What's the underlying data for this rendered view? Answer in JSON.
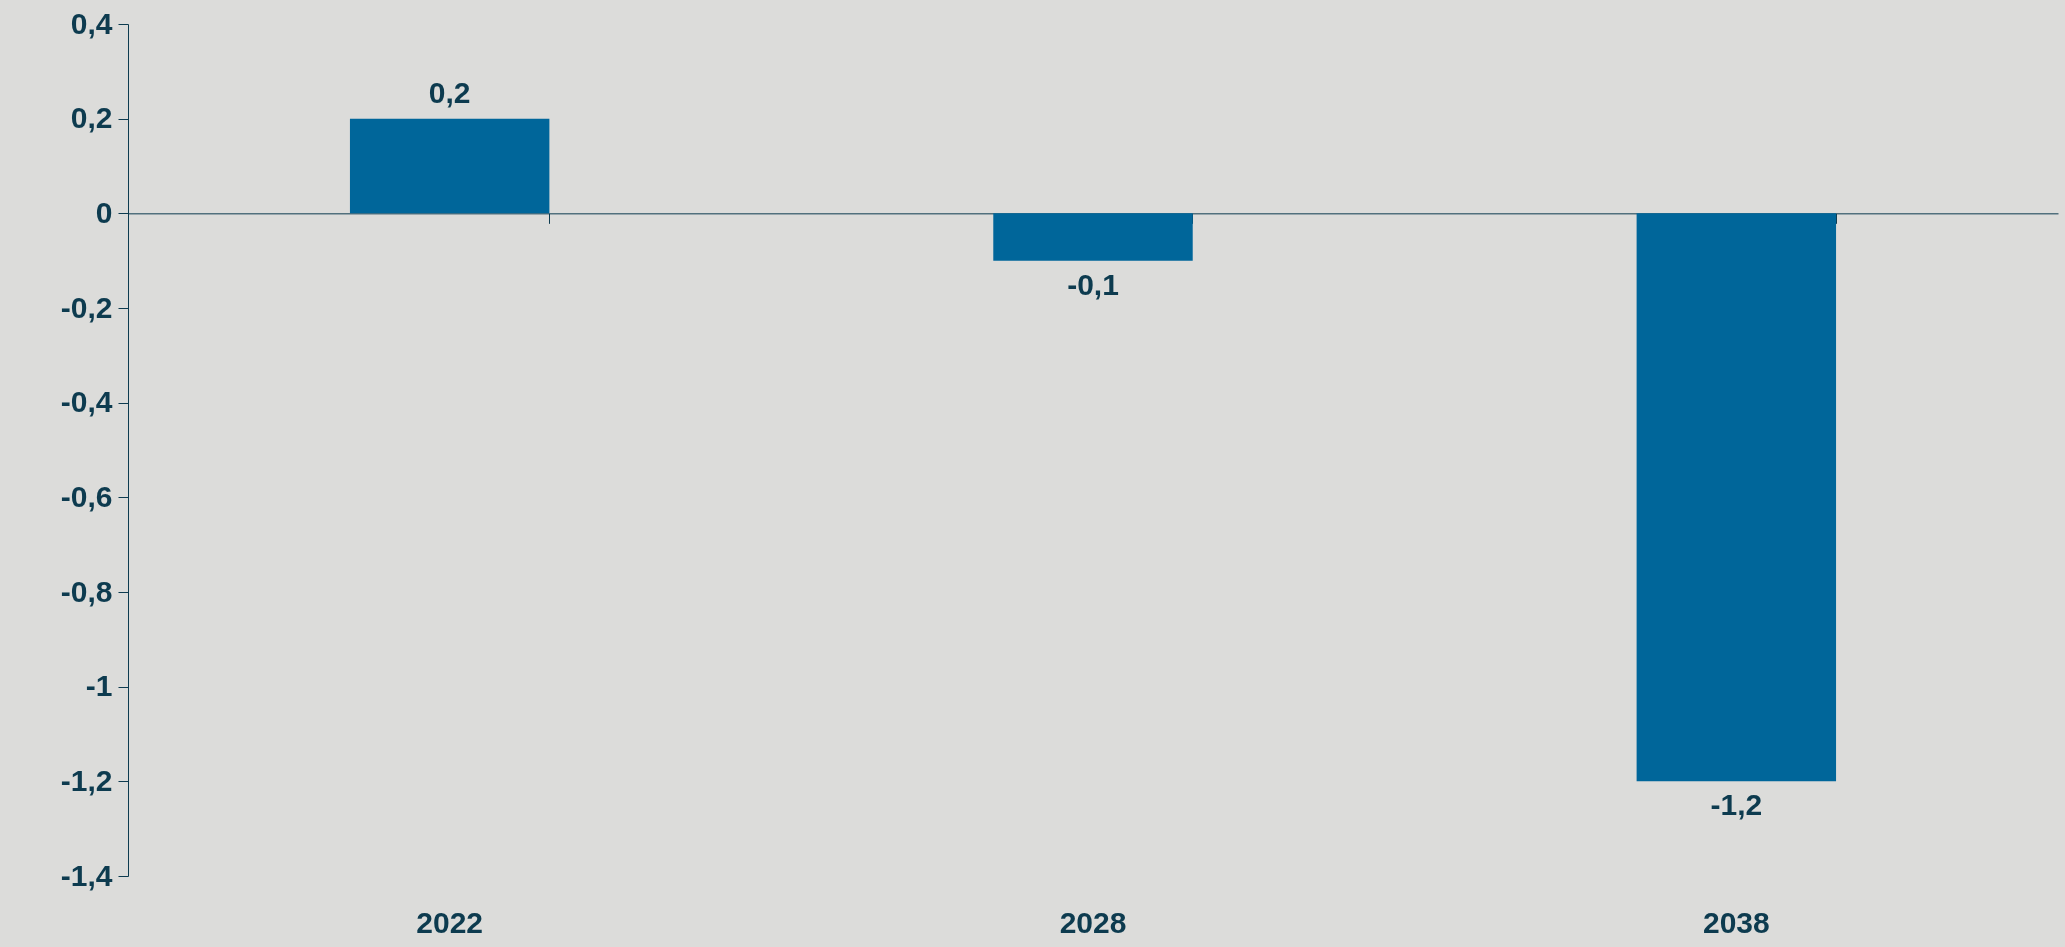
{
  "chart_data": {
    "type": "bar",
    "categories": [
      "2022",
      "2028",
      "2038"
    ],
    "values": [
      0.2,
      -0.1,
      -1.2
    ],
    "value_labels": [
      "0,2",
      "-0,1",
      "-1,2"
    ],
    "color": "#00669a",
    "ylim": [
      -1.4,
      0.4
    ],
    "yticks": [
      {
        "value": -1.4,
        "label": "-1,4"
      },
      {
        "value": -1.2,
        "label": "-1,2"
      },
      {
        "value": -1,
        "label": "-1"
      },
      {
        "value": -0.8,
        "label": "-0,8"
      },
      {
        "value": -0.6,
        "label": "-0,6"
      },
      {
        "value": -0.4,
        "label": "-0,4"
      },
      {
        "value": -0.2,
        "label": "-0,2"
      },
      0,
      {
        "value": 0.2,
        "label": "0,2"
      },
      {
        "value": 0.4,
        "label": "0,4"
      }
    ]
  }
}
